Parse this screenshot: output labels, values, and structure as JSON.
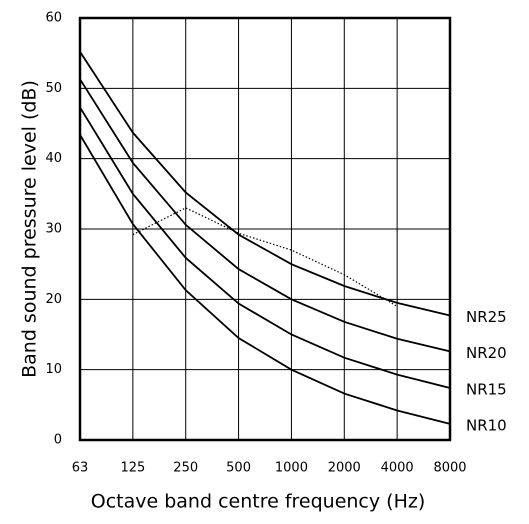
{
  "chart_data": {
    "type": "line",
    "xlabel": "Octave band centre frequency (Hz)",
    "ylabel": "Band sound pressure level (dB)",
    "categories": [
      "63",
      "125",
      "250",
      "500",
      "1000",
      "2000",
      "4000",
      "8000"
    ],
    "series": [
      {
        "name": "NR25",
        "color": "#000000",
        "values": [
          55.2,
          43.7,
          35.2,
          29.2,
          25,
          21.9,
          19.5,
          17.7
        ]
      },
      {
        "name": "NR20",
        "color": "#000000",
        "values": [
          51.3,
          39.4,
          30.6,
          24.3,
          20,
          16.8,
          14.4,
          12.6
        ]
      },
      {
        "name": "NR15",
        "color": "#000000",
        "values": [
          47.3,
          35.0,
          25.9,
          19.4,
          15,
          11.7,
          9.3,
          7.4
        ]
      },
      {
        "name": "NR10",
        "color": "#000000",
        "values": [
          43.4,
          30.7,
          21.3,
          14.5,
          10,
          6.6,
          4.2,
          2.3
        ]
      },
      {
        "color": "#000000",
        "dotted": true,
        "values": [
          null,
          29.2,
          33,
          29.4,
          27,
          23.5,
          19,
          null
        ]
      }
    ],
    "ylim": [
      0,
      60
    ],
    "yticks": [
      0,
      10,
      20,
      30,
      40,
      50,
      60
    ],
    "grid": true
  }
}
